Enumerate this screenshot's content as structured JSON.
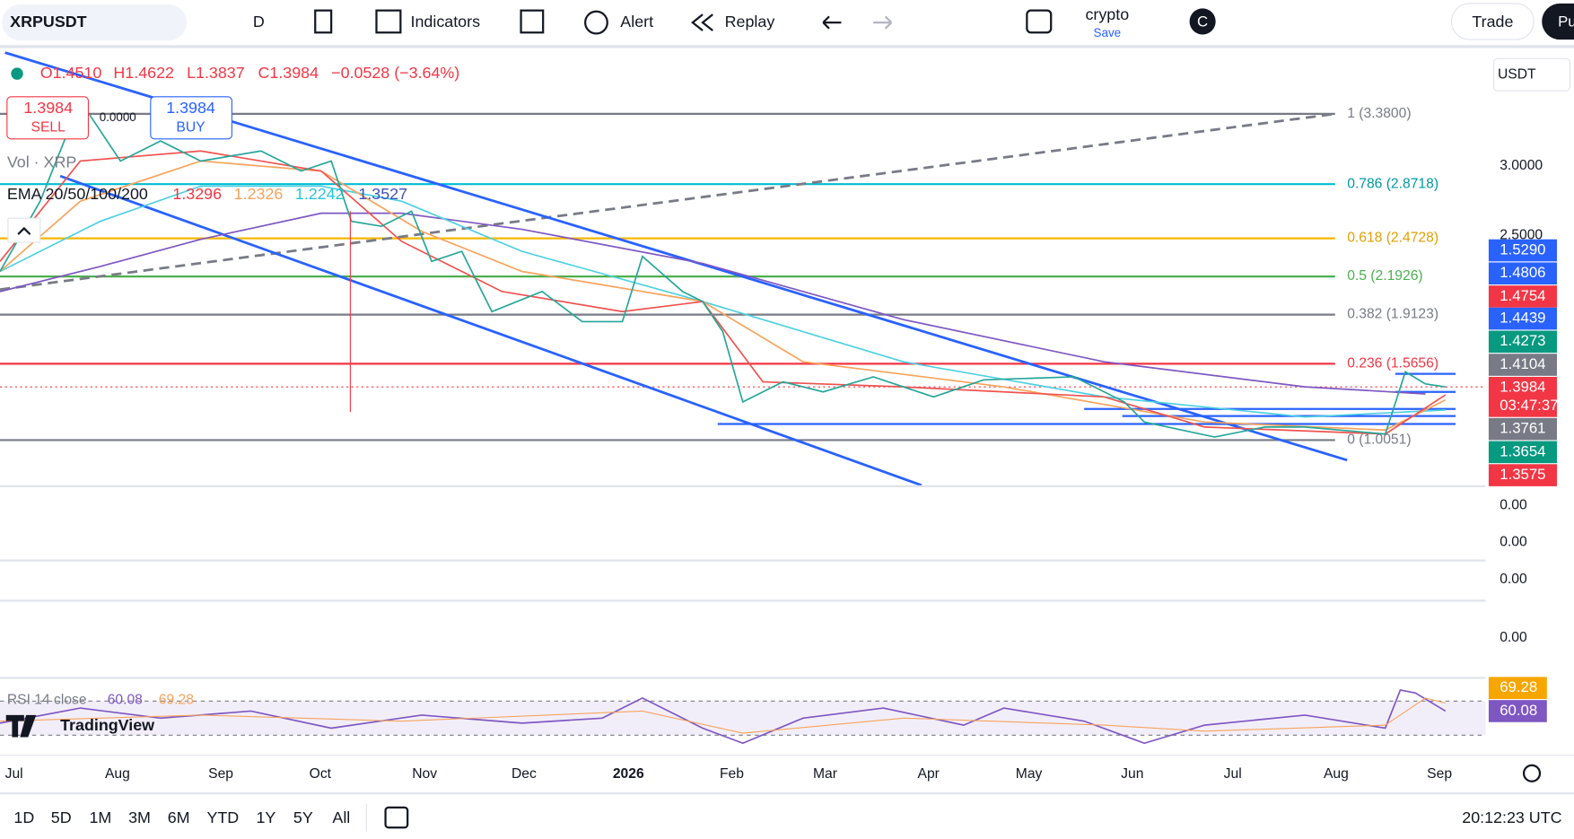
{
  "toolbar": {
    "symbol": "XRPUSDT",
    "interval": "D",
    "indicators": "Indicators",
    "alert": "Alert",
    "replay": "Replay",
    "layout_name": "crypto",
    "save": "Save",
    "avatar": "C",
    "trade": "Trade",
    "publish": "Pu"
  },
  "legend": {
    "open": "O1.4510",
    "high": "H1.4622",
    "low": "L1.3837",
    "close": "C1.3984",
    "change": "−0.0528 (−3.64%)",
    "sell_price": "1.3984",
    "sell": "SELL",
    "spread": "0.0000",
    "buy_price": "1.3984",
    "buy": "BUY",
    "volume": "Vol · XRP",
    "ema": "EMA 20/50/100/200",
    "ema_values": [
      "1.3296",
      "1.2326",
      "1.2242",
      "1.3527"
    ]
  },
  "currency": "USDT",
  "fib_levels": [
    "1 (3.3800)",
    "0.786 (2.8718)",
    "0.618 (2.4728)",
    "0.5 (2.1926)",
    "0.382 (1.9123)",
    "0.236 (1.5656)",
    "0 (1.0051)"
  ],
  "price_axis": [
    "3.0000",
    "2.5000"
  ],
  "price_tags": [
    "1.5290",
    "1.4806",
    "1.4754",
    "1.4439",
    "1.4273",
    "1.4104",
    "1.3984",
    "1.3761",
    "1.3654",
    "1.3575"
  ],
  "countdown": "03:47:37",
  "volume_axis": [
    "0.00",
    "0.00",
    "0.00",
    "0.00"
  ],
  "rsi": {
    "label": "RSI 14 close",
    "value": "60.08",
    "ma": "69.28"
  },
  "brand": "TradingView",
  "time_axis": [
    "Jul",
    "Aug",
    "Sep",
    "Oct",
    "Nov",
    "Dec",
    "2026",
    "Feb",
    "Mar",
    "Apr",
    "May",
    "Jun",
    "Jul",
    "Aug",
    "Sep"
  ],
  "ranges": [
    "1D",
    "5D",
    "1M",
    "3M",
    "6M",
    "YTD",
    "1Y",
    "5Y",
    "All"
  ],
  "clock": "20:12:23 UTC"
}
